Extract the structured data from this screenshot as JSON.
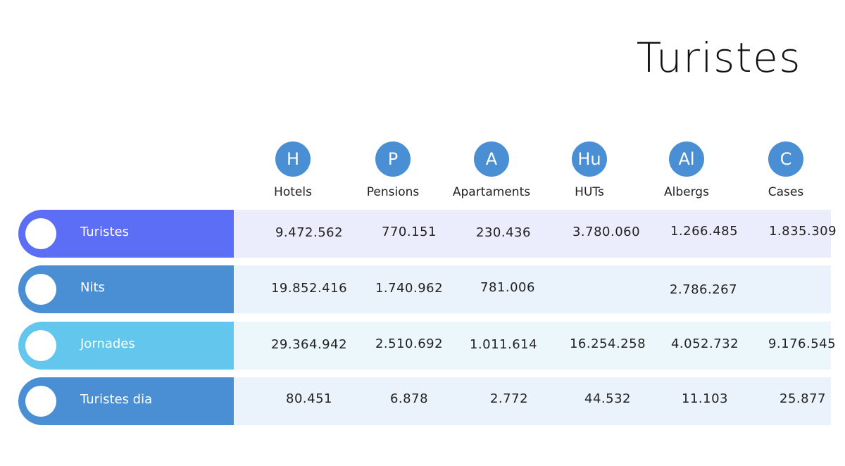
{
  "title": "Turistes",
  "columns": [
    {
      "icon_letter": "H",
      "label": "Hotels"
    },
    {
      "icon_letter": "P",
      "label": "Pensions"
    },
    {
      "icon_letter": "A",
      "label": "Apartaments"
    },
    {
      "icon_letter": "Hu",
      "label": "HUTs"
    },
    {
      "icon_letter": "Al",
      "label": "Albergs"
    },
    {
      "icon_letter": "C",
      "label": "Cases"
    }
  ],
  "rows": [
    {
      "label": "Turistes",
      "color": "#5b6ef5",
      "bg": "#ecedfc",
      "values": [
        "9.472.562",
        "770.151",
        "230.436",
        "3.780.060",
        "1.266.485",
        "1.835.309"
      ]
    },
    {
      "label": "Nits",
      "color": "#4a8fd4",
      "bg": "#eaf2fb",
      "values": [
        "19.852.416",
        "1.740.962",
        "781.006",
        "",
        "2.786.267",
        ""
      ]
    },
    {
      "label": "Jornades",
      "color": "#63c6ec",
      "bg": "#ecf7fc",
      "values": [
        "29.364.942",
        "2.510.692",
        "1.011.614",
        "16.254.258",
        "4.052.732",
        "9.176.545"
      ]
    },
    {
      "label": "Turistes dia",
      "color": "#4a8fd4",
      "bg": "#eaf2fb",
      "values": [
        "80.451",
        "6.878",
        "2.772",
        "44.532",
        "11.103",
        "25.877"
      ]
    }
  ]
}
